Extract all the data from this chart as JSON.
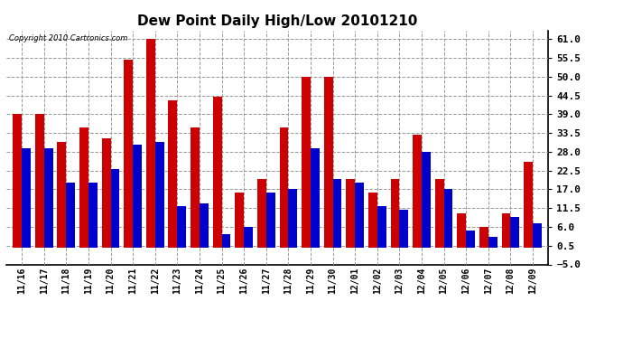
{
  "title": "Dew Point Daily High/Low 20101210",
  "copyright": "Copyright 2010 Cartronics.com",
  "dates": [
    "11/16",
    "11/17",
    "11/18",
    "11/19",
    "11/20",
    "11/21",
    "11/22",
    "11/23",
    "11/24",
    "11/25",
    "11/26",
    "11/27",
    "11/28",
    "11/29",
    "11/30",
    "12/01",
    "12/02",
    "12/03",
    "12/04",
    "12/05",
    "12/06",
    "12/07",
    "12/08",
    "12/09"
  ],
  "highs": [
    39,
    39,
    31,
    35,
    32,
    55,
    61,
    43,
    35,
    44,
    16,
    20,
    35,
    50,
    50,
    20,
    16,
    20,
    33,
    20,
    10,
    6,
    10,
    25
  ],
  "lows": [
    29,
    29,
    19,
    19,
    23,
    30,
    31,
    12,
    13,
    4,
    6,
    16,
    17,
    29,
    20,
    19,
    12,
    11,
    28,
    17,
    5,
    3,
    9,
    7
  ],
  "bar_color_high": "#cc0000",
  "bar_color_low": "#0000cc",
  "background_color": "#ffffff",
  "grid_color": "#999999",
  "yticks": [
    -5.0,
    0.5,
    6.0,
    11.5,
    17.0,
    22.5,
    28.0,
    33.5,
    39.0,
    44.5,
    50.0,
    55.5,
    61.0
  ],
  "ymin": -5.0,
  "ymax": 63.5,
  "bar_width": 0.4,
  "figwidth": 6.9,
  "figheight": 3.75,
  "dpi": 100
}
